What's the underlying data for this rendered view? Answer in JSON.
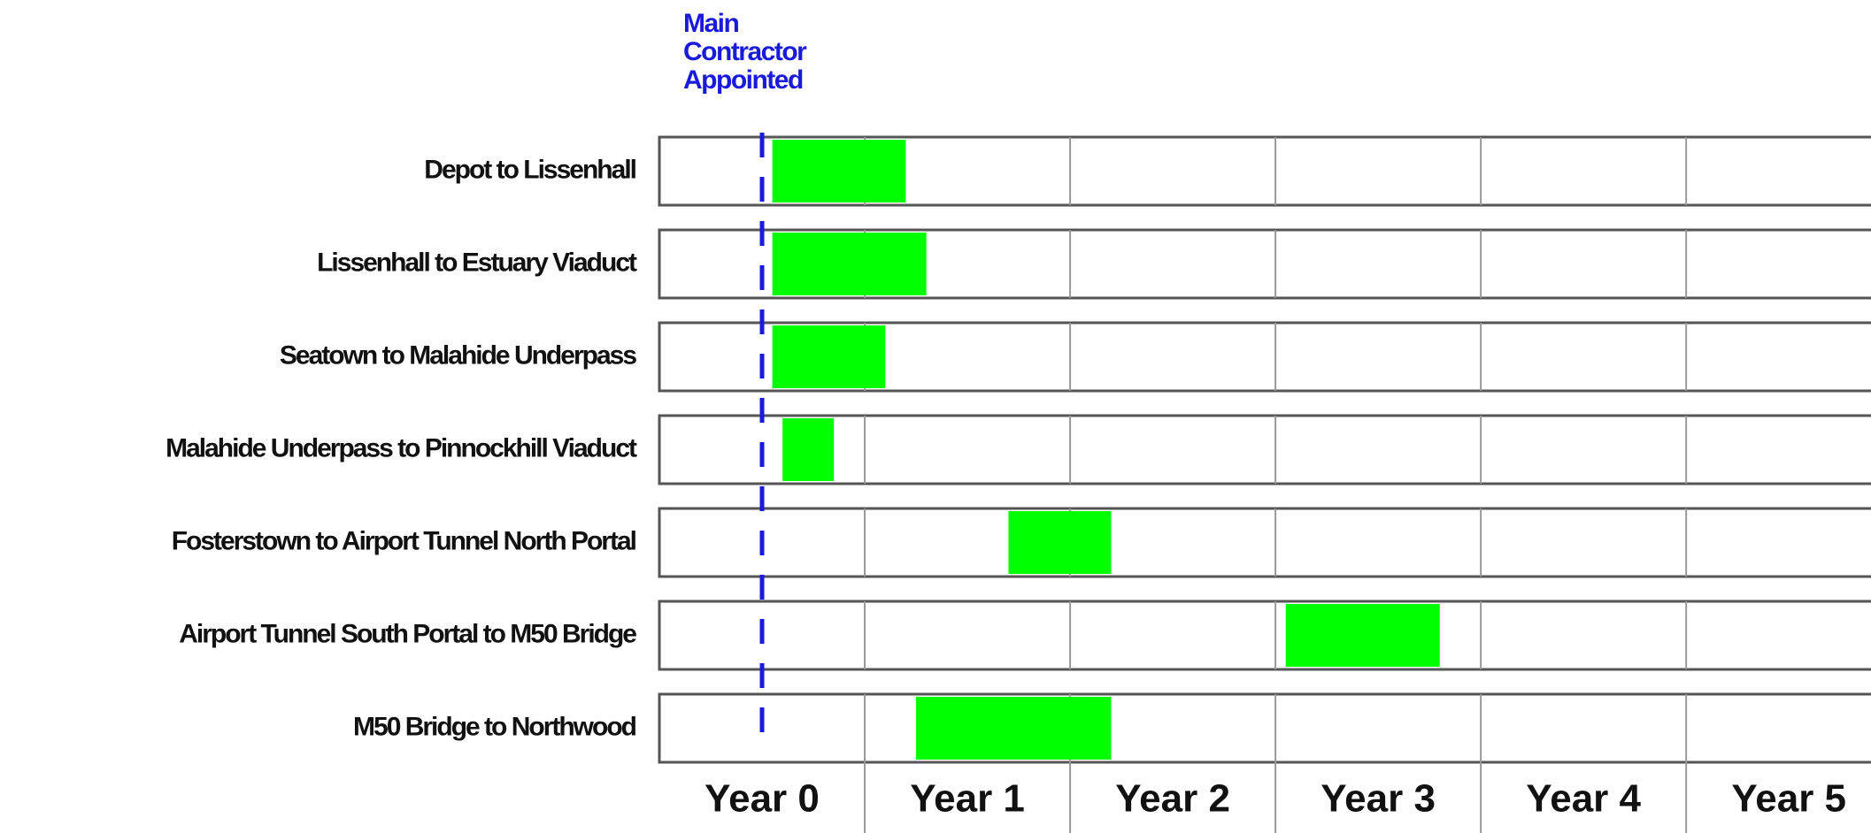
{
  "chart_data": {
    "type": "gantt",
    "tasks": [
      {
        "name": "Depot to Lissenhall",
        "start": 0.55,
        "end": 1.2
      },
      {
        "name": "Lissenhall to Estuary Viaduct",
        "start": 0.55,
        "end": 1.3
      },
      {
        "name": "Seatown to Malahide Underpass",
        "start": 0.55,
        "end": 1.1
      },
      {
        "name": "Malahide Underpass to Pinnockhill Viaduct",
        "start": 0.6,
        "end": 0.85
      },
      {
        "name": "Fosterstown to Airport Tunnel North Portal",
        "start": 1.7,
        "end": 2.2
      },
      {
        "name": "Airport Tunnel South  Portal  to M50 Bridge",
        "start": 3.05,
        "end": 3.8
      },
      {
        "name": "M50 Bridge to Northwood",
        "start": 1.25,
        "end": 2.2
      }
    ],
    "color": "#00ff00",
    "x_categories": [
      "Year 0",
      "Year 1",
      "Year 2",
      "Year 3",
      "Year 4",
      "Year 5"
    ],
    "xlim": [
      0,
      5.9
    ],
    "xticks": [
      1,
      2,
      3,
      4,
      5
    ],
    "grid": true,
    "milestone": {
      "label": [
        "Main",
        "Contractor",
        "Appointed"
      ],
      "x": 0.5,
      "color": "#1a1adb"
    }
  }
}
